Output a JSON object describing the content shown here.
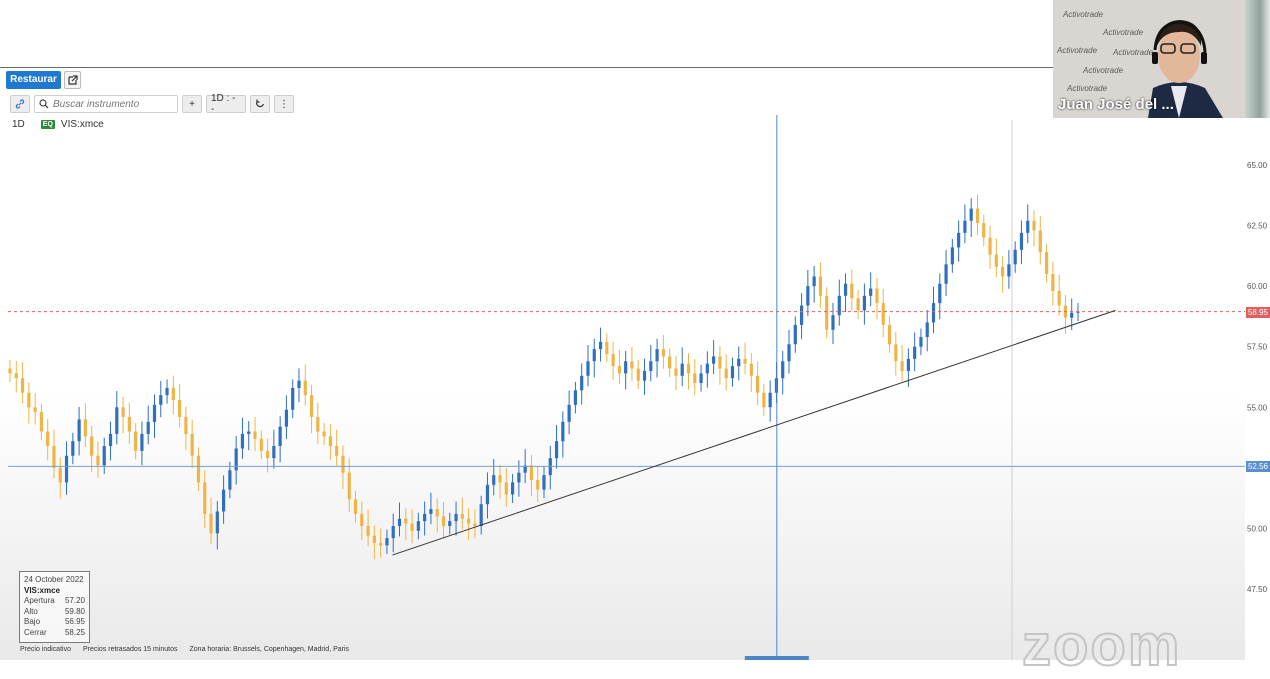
{
  "header": {
    "restore_label": "Restaurar",
    "popout_icon": "external-link-icon"
  },
  "toolbar": {
    "link_icon": "link-icon",
    "search_icon": "search-icon",
    "search_placeholder": "Buscar instrumento",
    "add_label": "+",
    "interval_label": "1D : - -",
    "refresh_icon": "refresh-icon",
    "more_label": "⋮"
  },
  "instrument": {
    "timeframe": "1D",
    "badge": "EQ",
    "symbol": "VIS:xmce"
  },
  "ohlc_box": {
    "date": "24 October 2022",
    "symbol": "VIS:xmce",
    "rows": [
      {
        "label": "Apertura",
        "value": "57.20"
      },
      {
        "label": "Alto",
        "value": "59.80"
      },
      {
        "label": "Bajo",
        "value": "56.95"
      },
      {
        "label": "Cerrar",
        "value": "58.25"
      }
    ]
  },
  "footer": {
    "indicative": "Precio indicativo",
    "delay": "Precios retrasados 15 minutos",
    "timezone": "Zona horaria: Brussels, Copenhagen, Madrid, Paris"
  },
  "webcam": {
    "caption": "Juan José del ...",
    "watermark": "Activotrade"
  },
  "zoom_watermark": "zoom",
  "colors": {
    "bull": "#2f6fc0",
    "bear": "#f0b446",
    "accent": "#1f78d1",
    "current_price": "#e06060",
    "support": "#6fa0d8"
  },
  "chart_data": {
    "type": "candlestick",
    "y_ticks": [
      "65.00",
      "62.50",
      "60.00",
      "57.50",
      "55.00",
      "52.50",
      "50.00",
      "47.50"
    ],
    "ylim": [
      46.5,
      67.0
    ],
    "current_price": "58.95",
    "support_price": "52.56",
    "trendline": {
      "from": [
        0.328,
        48.9
      ],
      "to": [
        0.945,
        59.0
      ]
    },
    "crosshair_x": 0.656,
    "x_range": [
      0,
      1
    ],
    "closes": [
      56.4,
      56.2,
      55.6,
      55.0,
      54.8,
      54.0,
      53.4,
      52.5,
      51.9,
      53.0,
      53.6,
      54.5,
      53.8,
      53.0,
      52.6,
      53.4,
      53.9,
      55.0,
      54.6,
      54.0,
      53.2,
      53.9,
      54.4,
      55.1,
      55.5,
      55.8,
      55.3,
      54.6,
      53.9,
      53.0,
      51.9,
      50.6,
      49.8,
      50.7,
      51.6,
      52.4,
      53.3,
      53.9,
      54.0,
      53.7,
      53.2,
      52.9,
      53.4,
      54.2,
      54.9,
      55.8,
      56.1,
      55.5,
      54.6,
      54.0,
      53.8,
      53.4,
      53.0,
      52.3,
      51.2,
      50.6,
      50.1,
      49.7,
      49.4,
      49.3,
      49.6,
      50.1,
      50.4,
      50.2,
      49.9,
      50.3,
      50.6,
      50.8,
      50.5,
      50.1,
      50.3,
      50.6,
      50.4,
      50.2,
      50.1,
      51.0,
      51.8,
      52.2,
      51.9,
      51.4,
      51.9,
      52.3,
      52.6,
      52.0,
      51.6,
      52.2,
      52.9,
      53.6,
      54.4,
      55.1,
      55.7,
      56.3,
      56.9,
      57.4,
      57.7,
      57.2,
      56.7,
      56.4,
      56.9,
      56.6,
      56.1,
      56.5,
      56.9,
      57.4,
      57.1,
      56.6,
      56.3,
      56.8,
      56.4,
      56.0,
      56.4,
      56.8,
      57.1,
      56.6,
      56.2,
      56.7,
      57.0,
      56.8,
      56.3,
      55.6,
      55.0,
      55.6,
      56.2,
      56.9,
      57.6,
      58.4,
      59.2,
      60.0,
      60.4,
      59.6,
      58.2,
      58.8,
      59.6,
      60.1,
      59.5,
      59.0,
      59.6,
      59.9,
      59.3,
      58.4,
      57.6,
      56.9,
      56.5,
      57.0,
      57.5,
      57.9,
      58.5,
      59.3,
      60.1,
      60.9,
      61.6,
      62.2,
      62.7,
      63.2,
      62.6,
      62.0,
      61.3,
      60.8,
      60.4,
      60.9,
      61.5,
      62.2,
      62.7,
      62.3,
      61.4,
      60.5,
      59.8,
      59.2,
      58.7,
      58.9,
      58.95
    ]
  }
}
